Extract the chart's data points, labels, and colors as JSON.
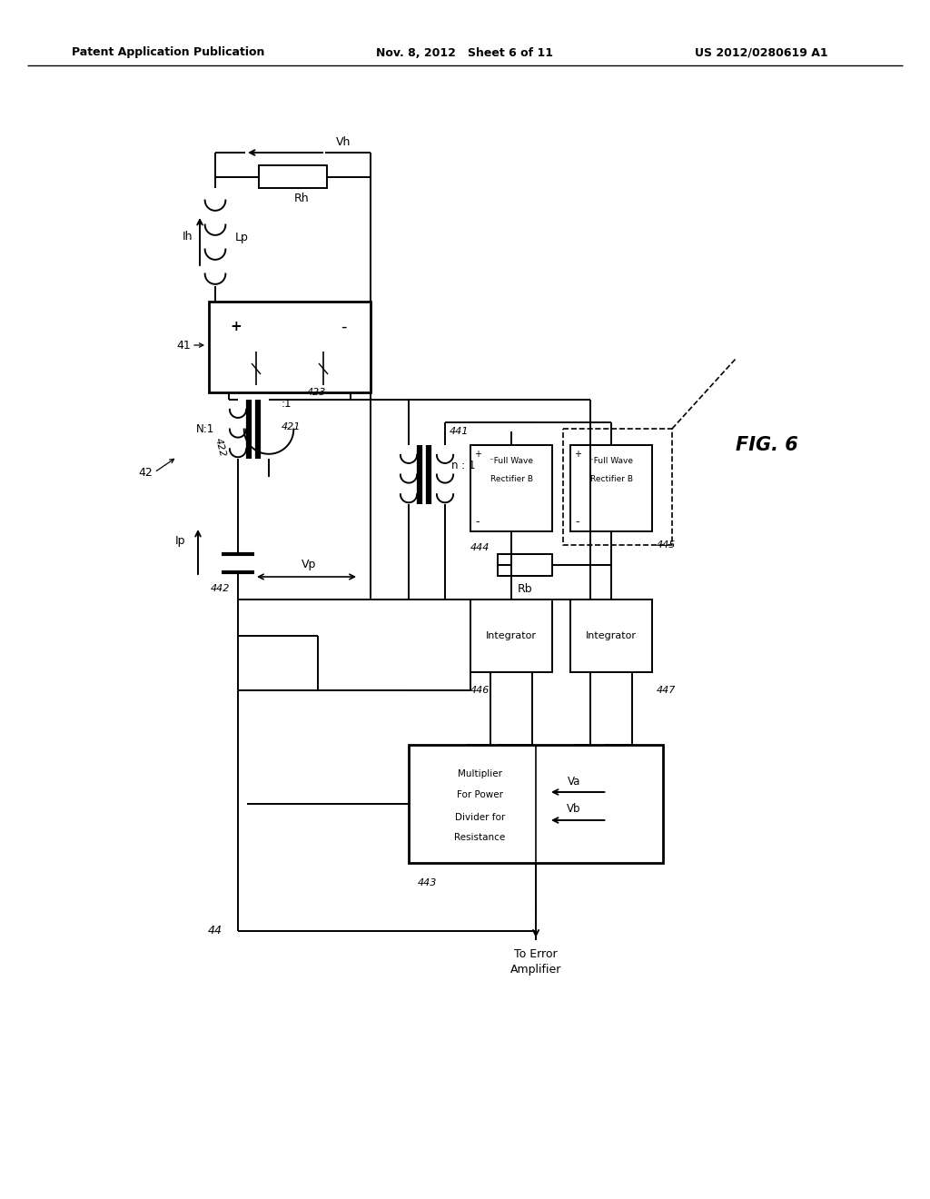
{
  "header_left": "Patent Application Publication",
  "header_mid": "Nov. 8, 2012   Sheet 6 of 11",
  "header_right": "US 2012/0280619 A1",
  "fig_label": "FIG. 6",
  "background": "#ffffff",
  "line_color": "#000000"
}
